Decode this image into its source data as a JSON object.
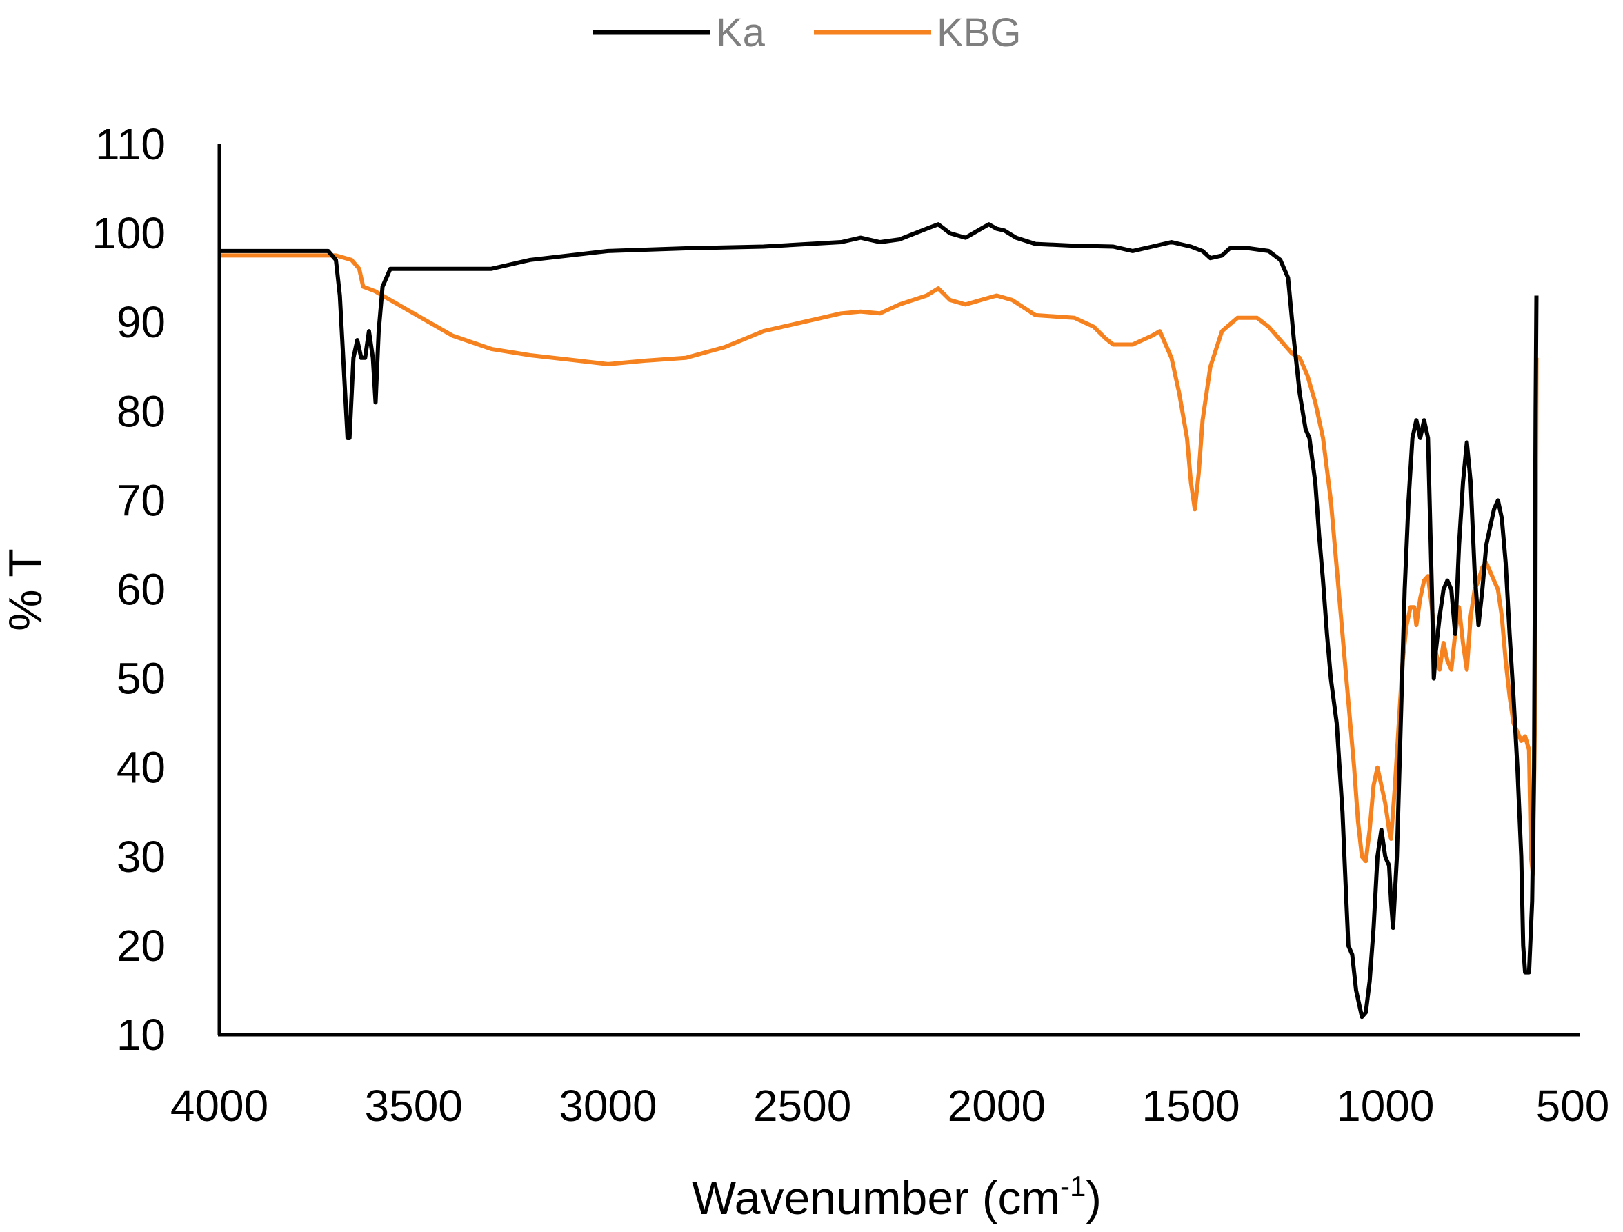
{
  "chart_data": {
    "type": "line",
    "xlabel": "Wavenumber (cm",
    "xlabel_superscript": "-1",
    "xlabel_suffix": ")",
    "ylabel": "% T",
    "xlim": [
      4000,
      500
    ],
    "ylim": [
      10,
      110
    ],
    "x_reversed": true,
    "x_ticks": [
      "4000",
      "3500",
      "3000",
      "2500",
      "2000",
      "1500",
      "1000",
      "500"
    ],
    "y_ticks": [
      "110",
      "100",
      "90",
      "80",
      "70",
      "60",
      "50",
      "40",
      "30",
      "20",
      "10"
    ],
    "grid": false,
    "legend_position": "top",
    "series": [
      {
        "name": "Ka",
        "color": "#000000",
        "points": [
          [
            4000,
            98
          ],
          [
            3800,
            98
          ],
          [
            3720,
            98
          ],
          [
            3700,
            97
          ],
          [
            3690,
            93
          ],
          [
            3680,
            85
          ],
          [
            3670,
            77
          ],
          [
            3665,
            77
          ],
          [
            3655,
            86
          ],
          [
            3645,
            88
          ],
          [
            3635,
            86
          ],
          [
            3625,
            86
          ],
          [
            3615,
            89
          ],
          [
            3605,
            86
          ],
          [
            3598,
            81
          ],
          [
            3590,
            89
          ],
          [
            3580,
            94
          ],
          [
            3560,
            96
          ],
          [
            3500,
            96
          ],
          [
            3400,
            96
          ],
          [
            3300,
            96
          ],
          [
            3200,
            97
          ],
          [
            3000,
            98
          ],
          [
            2800,
            98.3
          ],
          [
            2600,
            98.5
          ],
          [
            2400,
            99
          ],
          [
            2350,
            99.5
          ],
          [
            2300,
            99
          ],
          [
            2250,
            99.3
          ],
          [
            2180,
            100.5
          ],
          [
            2150,
            101
          ],
          [
            2120,
            100
          ],
          [
            2080,
            99.5
          ],
          [
            2040,
            100.5
          ],
          [
            2020,
            101
          ],
          [
            2000,
            100.5
          ],
          [
            1980,
            100.3
          ],
          [
            1950,
            99.5
          ],
          [
            1900,
            98.8
          ],
          [
            1800,
            98.6
          ],
          [
            1700,
            98.5
          ],
          [
            1650,
            98
          ],
          [
            1600,
            98.5
          ],
          [
            1550,
            99
          ],
          [
            1500,
            98.5
          ],
          [
            1470,
            98
          ],
          [
            1450,
            97.2
          ],
          [
            1420,
            97.5
          ],
          [
            1400,
            98.3
          ],
          [
            1350,
            98.3
          ],
          [
            1300,
            98
          ],
          [
            1270,
            97
          ],
          [
            1250,
            95
          ],
          [
            1235,
            88
          ],
          [
            1220,
            82
          ],
          [
            1205,
            78
          ],
          [
            1195,
            77
          ],
          [
            1180,
            72
          ],
          [
            1170,
            66
          ],
          [
            1160,
            61
          ],
          [
            1150,
            55
          ],
          [
            1140,
            50
          ],
          [
            1125,
            45
          ],
          [
            1110,
            35
          ],
          [
            1100,
            25
          ],
          [
            1095,
            20
          ],
          [
            1085,
            19
          ],
          [
            1075,
            15
          ],
          [
            1060,
            12
          ],
          [
            1050,
            12.5
          ],
          [
            1040,
            16
          ],
          [
            1030,
            22
          ],
          [
            1020,
            30
          ],
          [
            1010,
            33
          ],
          [
            1000,
            30
          ],
          [
            990,
            29
          ],
          [
            985,
            25
          ],
          [
            980,
            22
          ],
          [
            970,
            30
          ],
          [
            960,
            45
          ],
          [
            950,
            60
          ],
          [
            940,
            70
          ],
          [
            930,
            77
          ],
          [
            920,
            79
          ],
          [
            910,
            77
          ],
          [
            900,
            79
          ],
          [
            890,
            77
          ],
          [
            880,
            60
          ],
          [
            875,
            50
          ],
          [
            870,
            53
          ],
          [
            860,
            57
          ],
          [
            850,
            60
          ],
          [
            840,
            61
          ],
          [
            830,
            60
          ],
          [
            820,
            55
          ],
          [
            810,
            65
          ],
          [
            800,
            72
          ],
          [
            790,
            76.5
          ],
          [
            780,
            72
          ],
          [
            770,
            62
          ],
          [
            760,
            56
          ],
          [
            750,
            60
          ],
          [
            740,
            65
          ],
          [
            730,
            67
          ],
          [
            720,
            69
          ],
          [
            710,
            70
          ],
          [
            700,
            68
          ],
          [
            690,
            63
          ],
          [
            680,
            55
          ],
          [
            670,
            48
          ],
          [
            660,
            40
          ],
          [
            650,
            30
          ],
          [
            645,
            20
          ],
          [
            640,
            17
          ],
          [
            630,
            17
          ],
          [
            622,
            25
          ],
          [
            617,
            40
          ],
          [
            615,
            60
          ],
          [
            613,
            80
          ],
          [
            611,
            93
          ]
        ]
      },
      {
        "name": "KBG",
        "color": "#f5821f",
        "points": [
          [
            4000,
            97.5
          ],
          [
            3900,
            97.5
          ],
          [
            3800,
            97.5
          ],
          [
            3700,
            97.5
          ],
          [
            3660,
            97
          ],
          [
            3640,
            96
          ],
          [
            3630,
            94
          ],
          [
            3600,
            93.5
          ],
          [
            3500,
            91
          ],
          [
            3400,
            88.5
          ],
          [
            3300,
            87
          ],
          [
            3200,
            86.3
          ],
          [
            3100,
            85.8
          ],
          [
            3000,
            85.3
          ],
          [
            2900,
            85.7
          ],
          [
            2800,
            86
          ],
          [
            2700,
            87.2
          ],
          [
            2600,
            89
          ],
          [
            2500,
            90
          ],
          [
            2400,
            91
          ],
          [
            2350,
            91.2
          ],
          [
            2300,
            91
          ],
          [
            2250,
            92
          ],
          [
            2180,
            93
          ],
          [
            2150,
            93.8
          ],
          [
            2120,
            92.5
          ],
          [
            2080,
            92
          ],
          [
            2040,
            92.5
          ],
          [
            2000,
            93
          ],
          [
            1960,
            92.5
          ],
          [
            1900,
            90.8
          ],
          [
            1800,
            90.5
          ],
          [
            1750,
            89.5
          ],
          [
            1720,
            88.2
          ],
          [
            1700,
            87.5
          ],
          [
            1650,
            87.5
          ],
          [
            1600,
            88.5
          ],
          [
            1580,
            89
          ],
          [
            1570,
            88
          ],
          [
            1550,
            86
          ],
          [
            1530,
            82
          ],
          [
            1510,
            77
          ],
          [
            1500,
            72
          ],
          [
            1490,
            69
          ],
          [
            1480,
            73
          ],
          [
            1470,
            79
          ],
          [
            1450,
            85
          ],
          [
            1420,
            89
          ],
          [
            1380,
            90.5
          ],
          [
            1330,
            90.5
          ],
          [
            1300,
            89.5
          ],
          [
            1270,
            88
          ],
          [
            1240,
            86.5
          ],
          [
            1220,
            86
          ],
          [
            1200,
            84
          ],
          [
            1180,
            81
          ],
          [
            1160,
            77
          ],
          [
            1140,
            70
          ],
          [
            1120,
            60
          ],
          [
            1100,
            50
          ],
          [
            1080,
            40
          ],
          [
            1070,
            34
          ],
          [
            1060,
            30
          ],
          [
            1050,
            29.5
          ],
          [
            1040,
            33
          ],
          [
            1030,
            38
          ],
          [
            1020,
            40
          ],
          [
            1010,
            38
          ],
          [
            1000,
            36
          ],
          [
            990,
            33
          ],
          [
            985,
            32
          ],
          [
            975,
            38
          ],
          [
            965,
            45
          ],
          [
            955,
            52
          ],
          [
            945,
            56
          ],
          [
            935,
            58
          ],
          [
            925,
            58
          ],
          [
            920,
            56
          ],
          [
            910,
            59
          ],
          [
            900,
            61
          ],
          [
            890,
            61.5
          ],
          [
            880,
            58
          ],
          [
            870,
            53
          ],
          [
            860,
            51
          ],
          [
            850,
            54
          ],
          [
            840,
            52
          ],
          [
            830,
            51
          ],
          [
            820,
            55
          ],
          [
            810,
            58
          ],
          [
            800,
            54
          ],
          [
            790,
            51
          ],
          [
            780,
            57
          ],
          [
            770,
            60
          ],
          [
            760,
            61
          ],
          [
            750,
            62.5
          ],
          [
            740,
            63
          ],
          [
            730,
            62
          ],
          [
            720,
            61
          ],
          [
            710,
            60
          ],
          [
            700,
            57
          ],
          [
            690,
            52
          ],
          [
            680,
            48
          ],
          [
            670,
            45
          ],
          [
            660,
            44
          ],
          [
            650,
            43
          ],
          [
            640,
            43.5
          ],
          [
            630,
            42
          ],
          [
            625,
            30
          ],
          [
            620,
            28
          ],
          [
            615,
            45
          ],
          [
            612,
            70
          ],
          [
            611,
            86
          ]
        ]
      }
    ]
  }
}
